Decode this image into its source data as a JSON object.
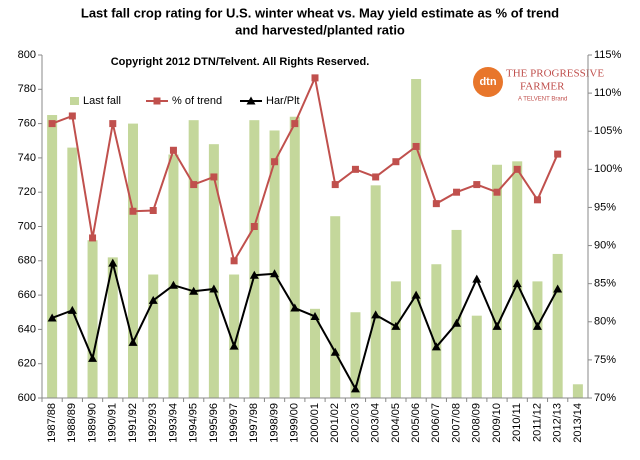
{
  "chart_data": {
    "type": "bar-line",
    "title": [
      "Last fall crop rating for U.S. winter wheat vs. May yield estimate as %  of trend",
      "and harvested/planted ratio"
    ],
    "annotation": "Copyright 2012 DTN/Telvent. All Rights Reserved.",
    "logo": [
      "dtn",
      "THE PROGRESSIVE",
      "FARMER",
      "A TELVENT Brand"
    ],
    "categories": [
      "1987/88",
      "1988/89",
      "1989/90",
      "1990/91",
      "1991/92",
      "1992/93",
      "1993/94",
      "1994/95",
      "1995/96",
      "1996/97",
      "1997/98",
      "1998/99",
      "1999/00",
      "2000/01",
      "2001/02",
      "2002/03",
      "2003/04",
      "2004/05",
      "2005/06",
      "2006/07",
      "2007/08",
      "2008/09",
      "2009/10",
      "2010/11",
      "2011/12",
      "2012/13",
      "2013/14"
    ],
    "series": [
      {
        "name": "Last fall",
        "color": "#c4d79b",
        "kind": "bar",
        "axis": "y",
        "values": [
          765,
          746,
          692,
          682,
          760,
          672,
          742,
          762,
          748,
          672,
          762,
          756,
          764,
          652,
          706,
          650,
          724,
          668,
          786,
          678,
          698,
          648,
          736,
          738,
          668,
          684,
          608
        ]
      },
      {
        "name": "% of trend",
        "color": "#c0504d",
        "kind": "line",
        "marker": "square",
        "axis": "y2",
        "values": [
          106,
          107,
          91,
          106,
          94.5,
          94.6,
          102.5,
          98,
          99,
          88,
          92.5,
          101,
          106,
          112,
          98,
          100,
          99,
          101,
          103,
          95.5,
          97,
          98,
          97,
          100,
          96,
          102,
          null
        ]
      },
      {
        "name": "Har/Plt",
        "color": "#000000",
        "kind": "line",
        "marker": "triangle",
        "axis": "y2",
        "values": [
          80.5,
          81.5,
          75.2,
          87.7,
          77.3,
          82.8,
          84.8,
          84,
          84.3,
          76.8,
          86.1,
          86.3,
          81.8,
          80.7,
          76,
          71.2,
          80.9,
          79.4,
          83.5,
          76.7,
          79.8,
          85.6,
          79.4,
          85,
          79.4,
          84.3,
          null
        ]
      }
    ],
    "ylim": [
      600,
      800
    ],
    "yticks": [
      600,
      620,
      640,
      660,
      680,
      700,
      720,
      740,
      760,
      780,
      800
    ],
    "y2lim": [
      70,
      115
    ],
    "y2ticks": [
      {
        "value": 70,
        "label": "70%"
      },
      {
        "value": 75,
        "label": "75%"
      },
      {
        "value": 80,
        "label": "80%"
      },
      {
        "value": 85,
        "label": "85%"
      },
      {
        "value": 90,
        "label": "90%"
      },
      {
        "value": 95,
        "label": "95%"
      },
      {
        "value": 100,
        "label": "100%"
      },
      {
        "value": 105,
        "label": "105%"
      },
      {
        "value": 110,
        "label": "110%"
      },
      {
        "value": 115,
        "label": "115%"
      }
    ],
    "grid": false,
    "legend": "upper left"
  }
}
